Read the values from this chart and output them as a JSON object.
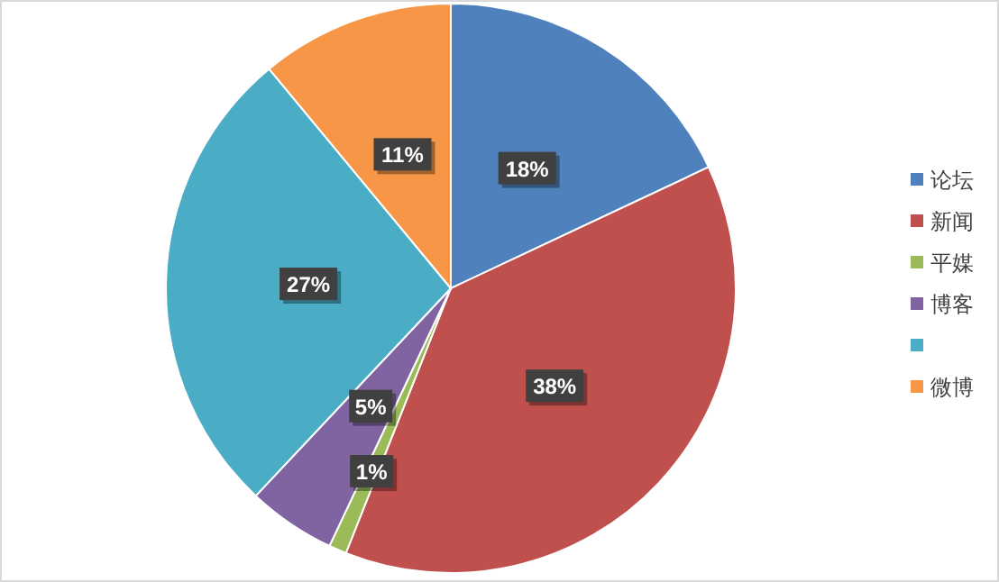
{
  "chart_data": {
    "type": "pie",
    "categories": [
      "论坛",
      "新闻",
      "平媒",
      "博客",
      null,
      "微博"
    ],
    "values": [
      18,
      38,
      1,
      5,
      27,
      11
    ],
    "colors": [
      "#4f81bd",
      "#c0504d",
      "#9bbb59",
      "#8064a2",
      "#4bacc6",
      "#f79646"
    ],
    "value_labels": [
      "18%",
      "38%",
      "1%",
      "5%",
      "27%",
      "11%"
    ],
    "legend": "right"
  }
}
